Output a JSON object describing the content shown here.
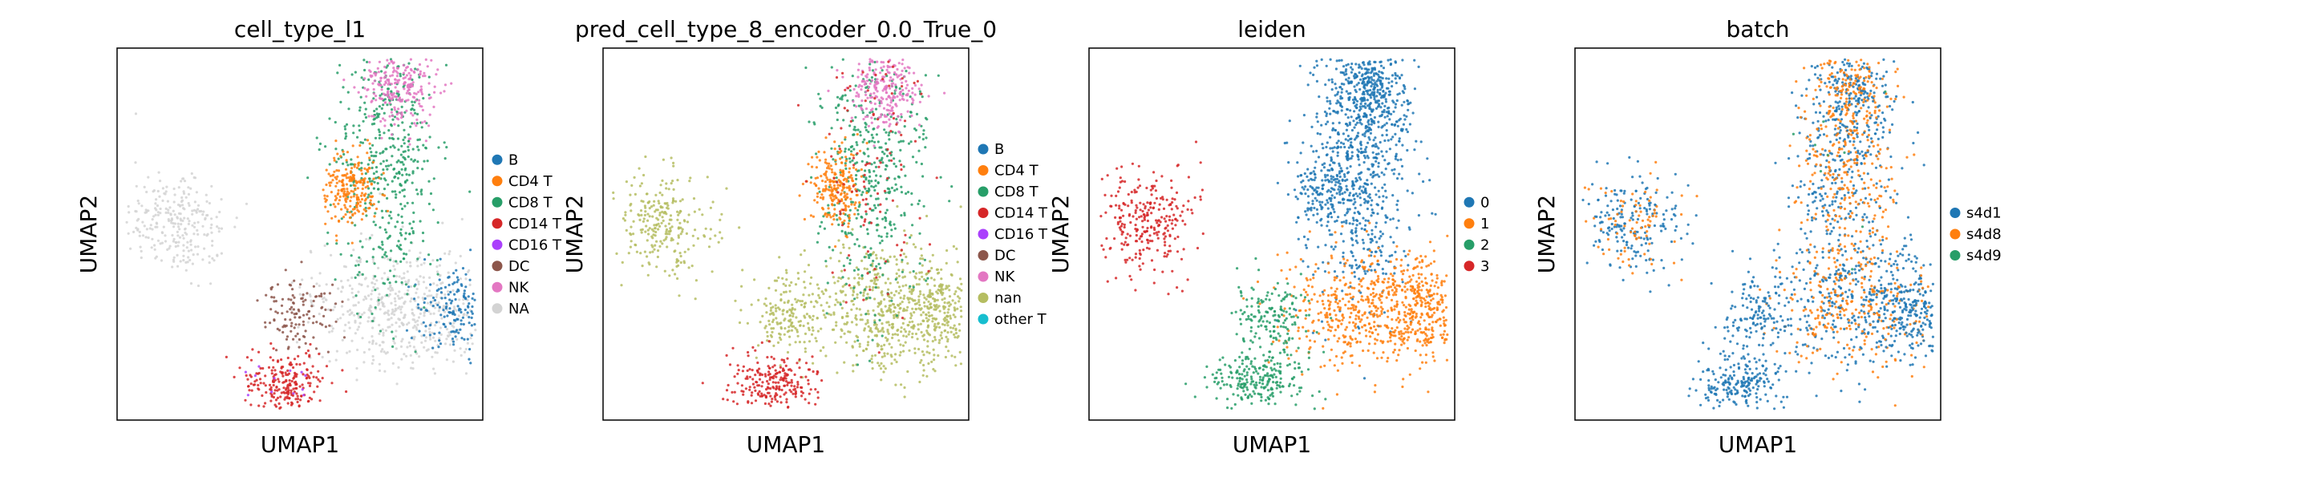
{
  "chart_data": [
    {
      "type": "scatter",
      "title": "cell_type_l1",
      "xlabel": "UMAP1",
      "ylabel": "UMAP2",
      "grid": false,
      "legend_placement": "right",
      "legend": [
        {
          "name": "B",
          "color": "#1f77b4"
        },
        {
          "name": "CD4 T",
          "color": "#ff7f0e"
        },
        {
          "name": "CD8 T",
          "color": "#279e68"
        },
        {
          "name": "CD14 T",
          "color": "#d62728"
        },
        {
          "name": "CD16 T",
          "color": "#aa40fc"
        },
        {
          "name": "DC",
          "color": "#8c564b"
        },
        {
          "name": "NK",
          "color": "#e377c2"
        },
        {
          "name": "NA",
          "color": "#d3d3d3"
        }
      ]
    },
    {
      "type": "scatter",
      "title": "pred_cell_type_8_encoder_0.0_True_0",
      "xlabel": "UMAP1",
      "ylabel": "UMAP2",
      "grid": false,
      "legend_placement": "right",
      "legend": [
        {
          "name": "B",
          "color": "#1f77b4"
        },
        {
          "name": "CD4 T",
          "color": "#ff7f0e"
        },
        {
          "name": "CD8 T",
          "color": "#279e68"
        },
        {
          "name": "CD14 T",
          "color": "#d62728"
        },
        {
          "name": "CD16 T",
          "color": "#aa40fc"
        },
        {
          "name": "DC",
          "color": "#8c564b"
        },
        {
          "name": "NK",
          "color": "#e377c2"
        },
        {
          "name": "nan",
          "color": "#b5bd61"
        },
        {
          "name": "other T",
          "color": "#17becf"
        }
      ]
    },
    {
      "type": "scatter",
      "title": "leiden",
      "xlabel": "UMAP1",
      "ylabel": "UMAP2",
      "grid": false,
      "legend_placement": "right",
      "legend": [
        {
          "name": "0",
          "color": "#1f77b4"
        },
        {
          "name": "1",
          "color": "#ff7f0e"
        },
        {
          "name": "2",
          "color": "#279e68"
        },
        {
          "name": "3",
          "color": "#d62728"
        }
      ]
    },
    {
      "type": "scatter",
      "title": "batch",
      "xlabel": "UMAP1",
      "ylabel": "UMAP2",
      "grid": false,
      "legend_placement": "right",
      "legend": [
        {
          "name": "s4d1",
          "color": "#1f77b4"
        },
        {
          "name": "s4d8",
          "color": "#ff7f0e"
        },
        {
          "name": "s4d9",
          "color": "#279e68"
        }
      ]
    }
  ]
}
